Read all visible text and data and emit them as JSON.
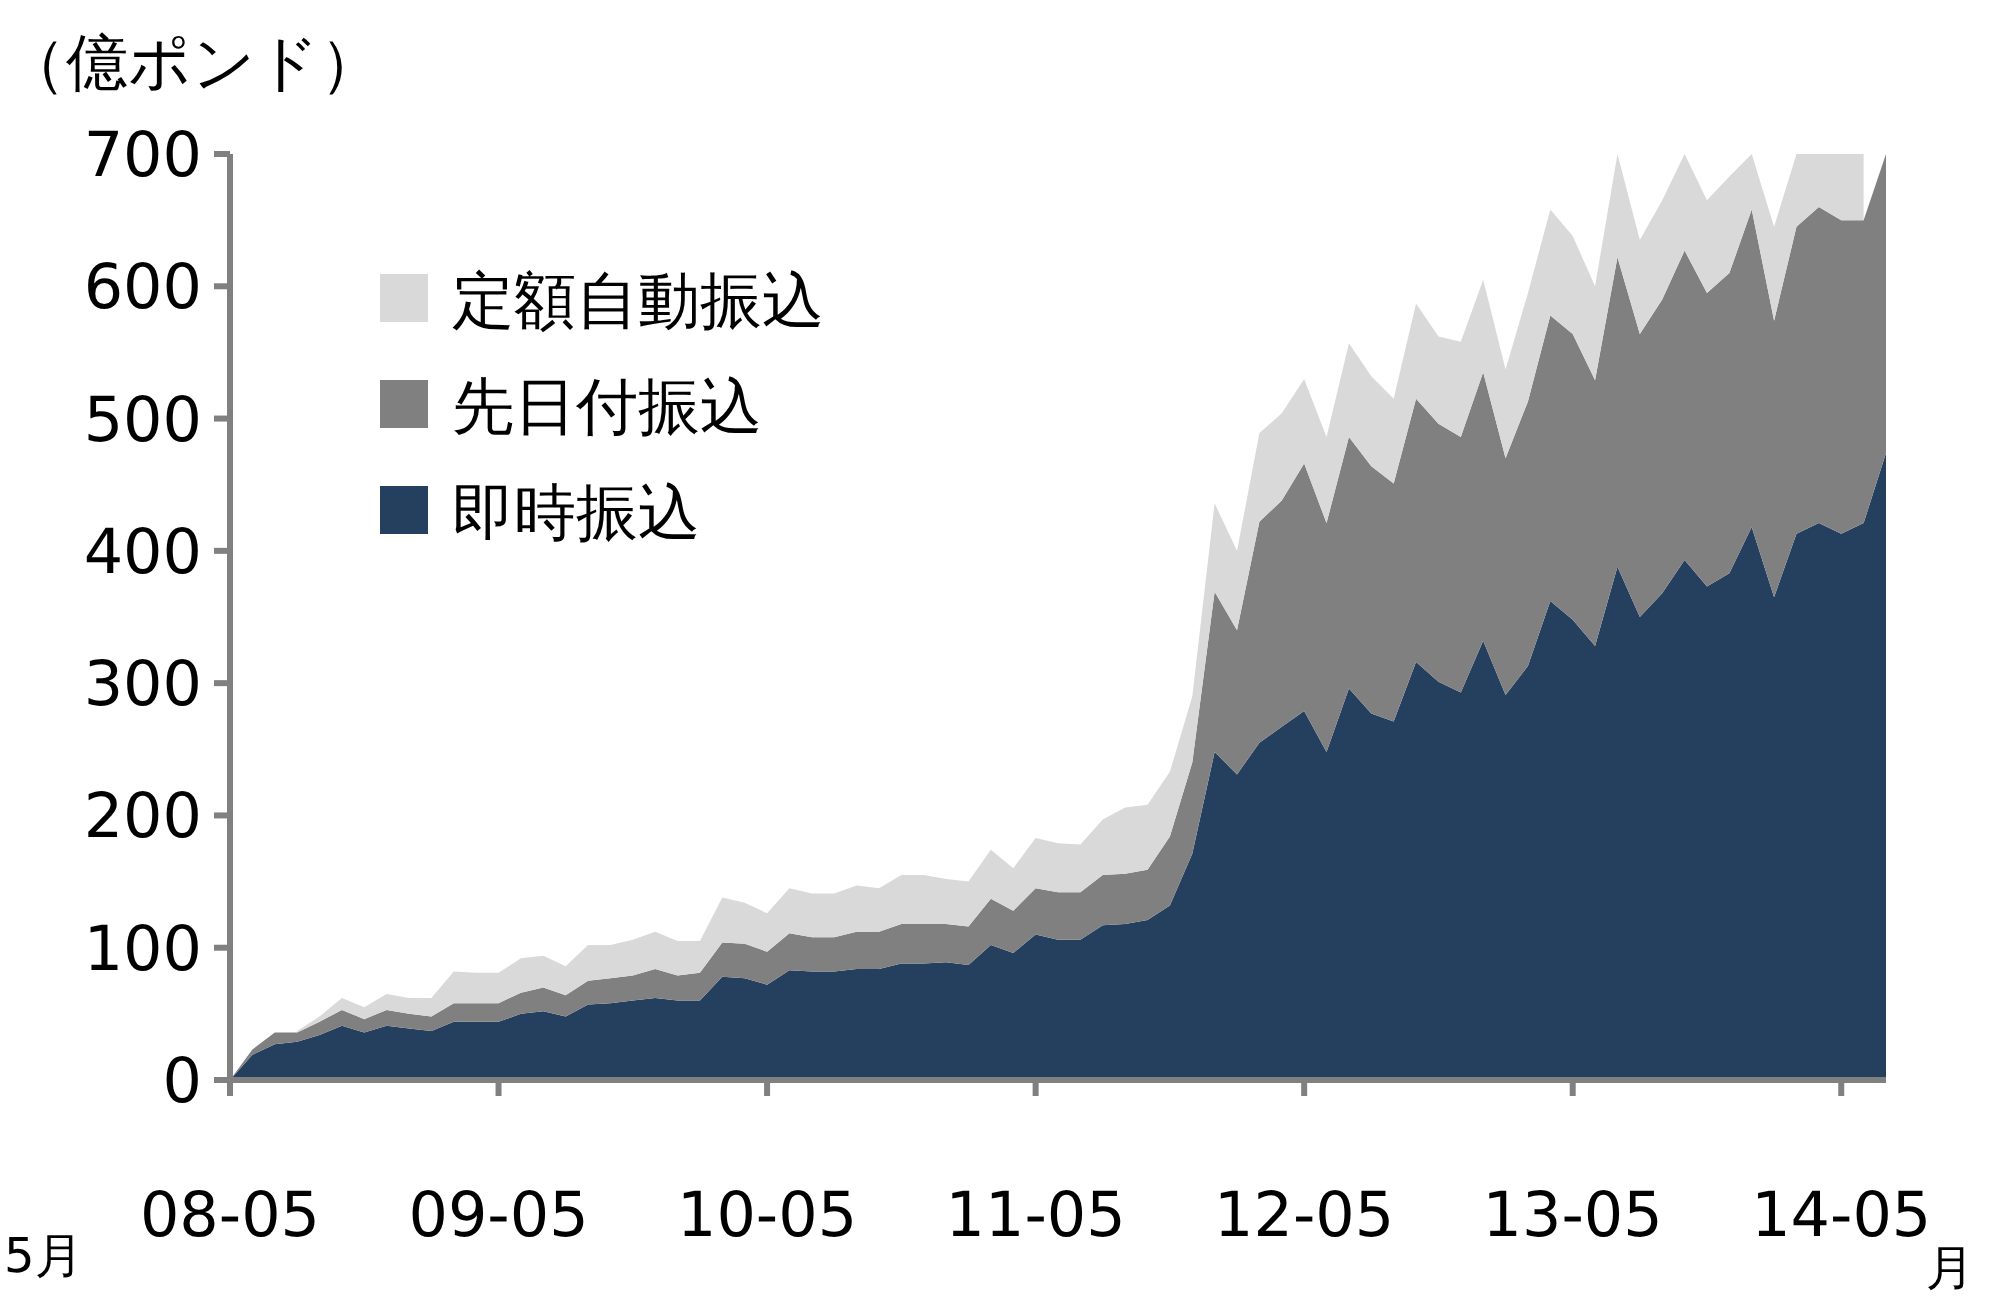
{
  "chart_data": {
    "type": "area",
    "stacked": true,
    "ylabel": "（億ポンド）",
    "categories": [
      "08-05",
      null,
      null,
      null,
      null,
      null,
      null,
      null,
      null,
      null,
      null,
      null,
      "09-05",
      null,
      null,
      null,
      null,
      null,
      null,
      null,
      null,
      null,
      null,
      null,
      "10-05",
      null,
      null,
      null,
      null,
      null,
      null,
      null,
      null,
      null,
      null,
      null,
      "11-05",
      null,
      null,
      null,
      null,
      null,
      null,
      null,
      null,
      null,
      null,
      null,
      "12-05",
      null,
      null,
      null,
      null,
      null,
      null,
      null,
      null,
      null,
      null,
      null,
      "13-05",
      null,
      null,
      null,
      null,
      null,
      null,
      null,
      null,
      null,
      null,
      null,
      "14-05",
      null,
      null
    ],
    "series": [
      {
        "name": "即時振込",
        "color": "#253f5f",
        "values": [
          0,
          19,
          27,
          29,
          34,
          41,
          36,
          41,
          39,
          37,
          44,
          44,
          44,
          50,
          52,
          48,
          57,
          58,
          60,
          62,
          60,
          60,
          78,
          77,
          72,
          83,
          82,
          82,
          84,
          84,
          88,
          88,
          89,
          87,
          102,
          96,
          110,
          106,
          106,
          117,
          118,
          121,
          132,
          171,
          248,
          231,
          255,
          267,
          279,
          248,
          296,
          277,
          271,
          316,
          301,
          293,
          332,
          291,
          313,
          362,
          348,
          328,
          388,
          350,
          368,
          393,
          373,
          383,
          418,
          365,
          413,
          421,
          413,
          421,
          474
        ]
      },
      {
        "name": "先日付振込",
        "color": "#808080",
        "values": [
          0,
          4,
          9,
          7,
          10,
          12,
          10,
          12,
          11,
          11,
          14,
          14,
          14,
          16,
          18,
          16,
          18,
          19,
          19,
          22,
          19,
          21,
          26,
          26,
          25,
          28,
          26,
          26,
          28,
          28,
          30,
          30,
          29,
          29,
          35,
          32,
          35,
          36,
          36,
          38,
          38,
          38,
          52,
          69,
          121,
          109,
          167,
          171,
          187,
          173,
          190,
          187,
          180,
          199,
          195,
          193,
          203,
          179,
          200,
          216,
          216,
          201,
          234,
          214,
          222,
          234,
          222,
          227,
          240,
          209,
          232,
          239,
          237,
          229,
          226
        ]
      },
      {
        "name": "定額自動振込",
        "color": "#d9d9d9",
        "values": [
          null,
          null,
          null,
          1,
          4,
          9,
          9,
          12,
          12,
          14,
          24,
          23,
          23,
          26,
          24,
          22,
          27,
          25,
          27,
          28,
          26,
          24,
          34,
          31,
          29,
          34,
          33,
          33,
          35,
          33,
          37,
          37,
          34,
          34,
          37,
          32,
          38,
          37,
          36,
          42,
          50,
          49,
          49,
          50,
          67,
          60,
          67,
          66,
          64,
          65,
          71,
          68,
          64,
          72,
          66,
          72,
          70,
          67,
          82,
          80,
          74,
          71,
          78,
          71,
          75,
          73,
          70,
          73,
          42,
          71,
          55,
          40,
          50,
          50,
          null
        ]
      }
    ],
    "ylim": [
      0,
      700
    ],
    "yticks": [
      0,
      100,
      200,
      300,
      400,
      500,
      600,
      700
    ],
    "legend": "top left",
    "annotations": [
      "5月",
      "月"
    ]
  }
}
